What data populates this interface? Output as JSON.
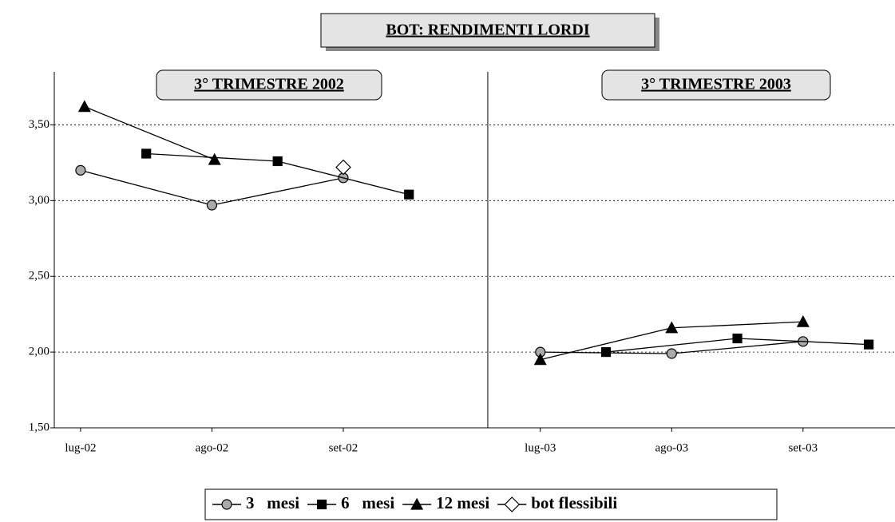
{
  "chart_data": {
    "type": "line",
    "title": "BOT: RENDIMENTI LORDI",
    "annotations": [
      "3° TRIMESTRE 2002",
      "3° TRIMESTRE 2003"
    ],
    "xlim": [
      -0.2,
      6.2
    ],
    "xticks": [
      {
        "value": 0,
        "label": "lug-02"
      },
      {
        "value": 1,
        "label": "ago-02"
      },
      {
        "value": 2,
        "label": "set-02"
      },
      {
        "value": 3.5,
        "label": "lug-03"
      },
      {
        "value": 4.5,
        "label": "ago-03"
      },
      {
        "value": 5.5,
        "label": "set-03"
      }
    ],
    "ylim": [
      1.5,
      3.85
    ],
    "yticks": [
      {
        "value": 1.5,
        "label": "1,50"
      },
      {
        "value": 2,
        "label": "2,00"
      },
      {
        "value": 2.5,
        "label": "2,50"
      },
      {
        "value": 3,
        "label": "3,00"
      },
      {
        "value": 3.5,
        "label": "3,50"
      }
    ],
    "grid": true,
    "legend": "bottom",
    "series": [
      {
        "name": "3   mesi",
        "color": "#000000",
        "marker": "circle",
        "x": [
          0,
          1,
          2,
          3,
          3.5,
          4.5,
          5.5
        ],
        "values": [
          3.2,
          2.97,
          3.15,
          null,
          2.0,
          1.99,
          2.07
        ]
      },
      {
        "name": "6   mesi",
        "color": "#000000",
        "marker": "square",
        "x": [
          0.5,
          1.5,
          2.5,
          3,
          4,
          5,
          6
        ],
        "values": [
          3.31,
          3.26,
          3.04,
          null,
          2.0,
          2.09,
          2.05
        ]
      },
      {
        "name": "12 mesi",
        "color": "#000000",
        "marker": "triangle",
        "x": [
          0.03,
          1.02,
          3,
          3.5,
          4.5,
          5.5
        ],
        "values": [
          3.62,
          3.27,
          null,
          1.95,
          2.16,
          2.2
        ]
      },
      {
        "name": "bot flessibili",
        "color": "#000000",
        "marker": "diamond",
        "x": [
          2
        ],
        "values": [
          3.22
        ]
      }
    ]
  }
}
